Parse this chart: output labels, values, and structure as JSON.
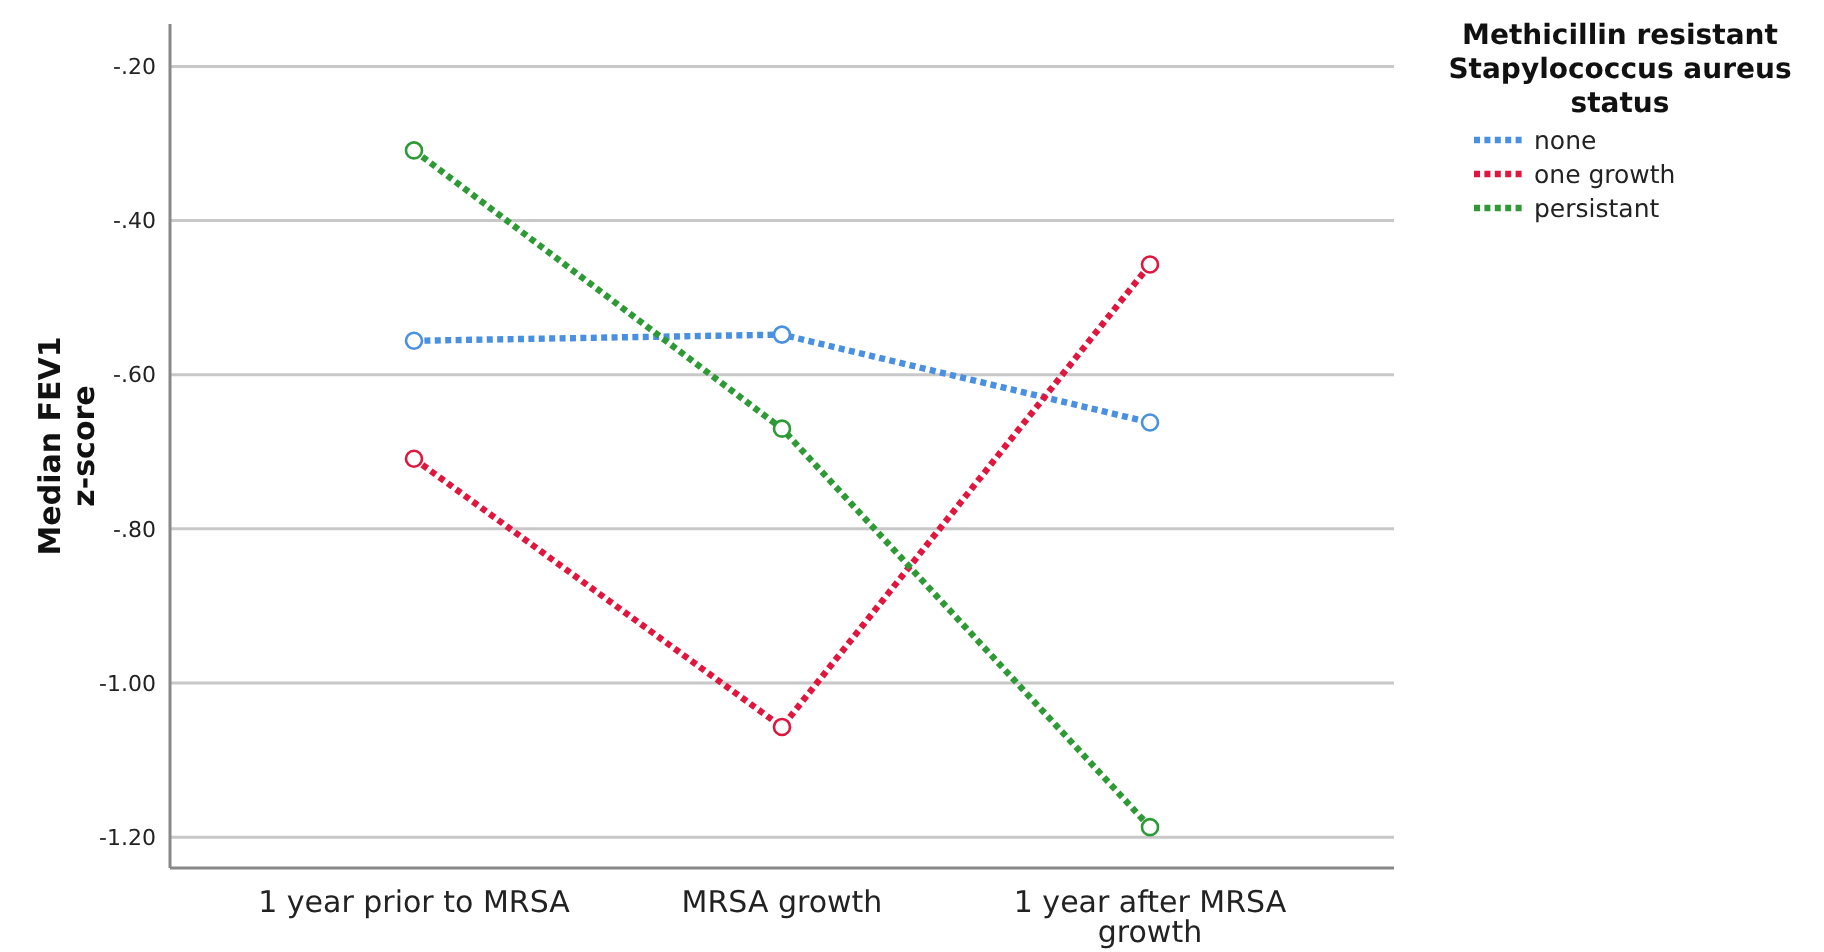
{
  "chart_data": {
    "type": "line",
    "ylabel": "Median FEV1 z-score",
    "legend_title": "Methicillin resistant Stapylococcus aureus status",
    "categories": [
      "1 year prior to MRSA",
      "MRSA growth",
      "1 year after MRSA growth"
    ],
    "series": [
      {
        "name": "none",
        "color": "#4a90e2",
        "values": [
          -0.556,
          -0.548,
          -0.662
        ]
      },
      {
        "name": "one growth",
        "color": "#e0163e",
        "values": [
          -0.709,
          -1.057,
          -0.457
        ]
      },
      {
        "name": "persistant",
        "color": "#2e9a35",
        "values": [
          -0.309,
          -0.67,
          -1.187
        ]
      }
    ],
    "ylim": [
      -1.24,
      -0.145
    ],
    "yticks": [
      {
        "value": -1.2,
        "label": "-1.20"
      },
      {
        "value": -1.0,
        "label": "-1.00"
      },
      {
        "value": -0.8,
        "label": "-.80"
      },
      {
        "value": -0.6,
        "label": "-.60"
      },
      {
        "value": -0.4,
        "label": "-.40"
      },
      {
        "value": -0.2,
        "label": "-.20"
      }
    ],
    "grid": "y",
    "legend": "top right",
    "marker": "circle",
    "line_style": "dotted"
  }
}
